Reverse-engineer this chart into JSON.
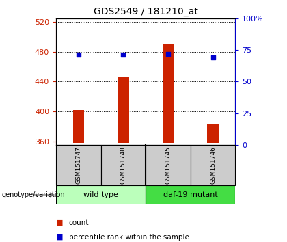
{
  "title": "GDS2549 / 181210_at",
  "samples": [
    "GSM151747",
    "GSM151748",
    "GSM151745",
    "GSM151746"
  ],
  "bar_values": [
    402,
    446,
    491,
    383
  ],
  "bar_bottom": 358,
  "percentile_values": [
    71,
    71,
    72,
    69
  ],
  "bar_color": "#cc2200",
  "percentile_color": "#0000cc",
  "ylim_left": [
    355,
    525
  ],
  "ylim_right": [
    0,
    100
  ],
  "yticks_left": [
    360,
    400,
    440,
    480,
    520
  ],
  "yticks_right": [
    0,
    25,
    50,
    75,
    100
  ],
  "ytick_labels_right": [
    "0",
    "25",
    "50",
    "75",
    "100%"
  ],
  "groups": [
    {
      "label": "wild type",
      "indices": [
        0,
        1
      ],
      "color": "#bbffbb"
    },
    {
      "label": "daf-19 mutant",
      "indices": [
        2,
        3
      ],
      "color": "#44dd44"
    }
  ],
  "group_label": "genotype/variation",
  "legend_count_label": "count",
  "legend_percentile_label": "percentile rank within the sample",
  "title_fontsize": 10,
  "tick_fontsize": 8,
  "label_fontsize": 8
}
